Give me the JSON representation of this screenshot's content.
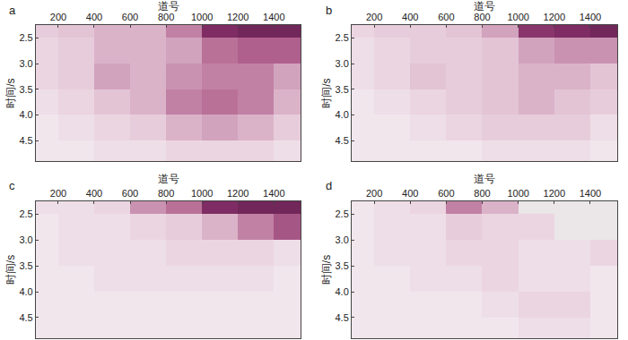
{
  "chart_data": [
    {
      "type": "heatmap",
      "title": "a",
      "xlabel": "道号",
      "ylabel": "时间/s",
      "x": [
        100,
        300,
        500,
        700,
        900,
        1100,
        1300,
        1500
      ],
      "y": [
        2.25,
        2.75,
        3.25,
        3.75,
        4.25,
        4.75
      ],
      "cells": [
        [
          0.2,
          0.25,
          0.3,
          0.3,
          0.45,
          0.8,
          0.85,
          0.85
        ],
        [
          0.15,
          0.2,
          0.3,
          0.3,
          0.35,
          0.5,
          0.55,
          0.55
        ],
        [
          0.15,
          0.2,
          0.35,
          0.3,
          0.4,
          0.45,
          0.45,
          0.35
        ],
        [
          0.1,
          0.15,
          0.25,
          0.3,
          0.45,
          0.5,
          0.45,
          0.3
        ],
        [
          0.05,
          0.1,
          0.15,
          0.2,
          0.3,
          0.35,
          0.3,
          0.2
        ],
        [
          0.05,
          0.05,
          0.1,
          0.1,
          0.15,
          0.15,
          0.15,
          0.1
        ]
      ],
      "zlim": [
        0,
        1
      ],
      "xlim": [
        75,
        1550
      ],
      "ylim": [
        2.25,
        4.9
      ],
      "xticks": [
        200,
        400,
        600,
        800,
        1000,
        1200,
        1400
      ],
      "yticks": [
        2.5,
        {
          "value": 3,
          "label": "3.0"
        },
        3.5,
        {
          "value": 4,
          "label": "4.0"
        },
        4.5
      ]
    },
    {
      "type": "heatmap",
      "title": "b",
      "xlabel": "道号",
      "ylabel": "时间/s",
      "x": [
        100,
        300,
        500,
        700,
        900,
        1100,
        1300,
        1500
      ],
      "y": [
        2.25,
        2.75,
        3.25,
        3.75,
        4.25,
        4.75
      ],
      "cells": [
        [
          0.15,
          0.2,
          0.2,
          0.25,
          0.35,
          0.75,
          0.8,
          0.85
        ],
        [
          0.1,
          0.15,
          0.2,
          0.2,
          0.25,
          0.35,
          0.4,
          0.4
        ],
        [
          0.1,
          0.15,
          0.25,
          0.2,
          0.25,
          0.3,
          0.3,
          0.25
        ],
        [
          0.05,
          0.1,
          0.15,
          0.2,
          0.25,
          0.3,
          0.25,
          0.2
        ],
        [
          0.05,
          0.05,
          0.1,
          0.15,
          0.2,
          0.2,
          0.2,
          0.1
        ],
        [
          0.05,
          0.05,
          0.05,
          0.05,
          0.1,
          0.1,
          0.1,
          0.05
        ]
      ],
      "zlim": [
        0,
        1
      ],
      "xlim": [
        75,
        1550
      ],
      "ylim": [
        2.25,
        4.9
      ],
      "xticks": [
        200,
        400,
        600,
        800,
        1000,
        1200,
        1400
      ],
      "yticks": [
        2.5,
        {
          "value": 3,
          "label": "3.0"
        },
        3.5,
        {
          "value": 4,
          "label": "4.0"
        },
        4.5
      ]
    },
    {
      "type": "heatmap",
      "title": "c",
      "xlabel": "道号",
      "ylabel": "时间/s",
      "x": [
        100,
        300,
        500,
        700,
        900,
        1100,
        1300,
        1500
      ],
      "y": [
        2.25,
        2.75,
        3.25,
        3.75,
        4.25,
        4.75
      ],
      "cells": [
        [
          0.1,
          0.1,
          0.15,
          0.4,
          0.5,
          0.8,
          0.85,
          0.85
        ],
        [
          0.05,
          0.1,
          0.1,
          0.15,
          0.2,
          0.3,
          0.45,
          0.6
        ],
        [
          0.05,
          0.1,
          0.1,
          0.1,
          0.15,
          0.15,
          0.15,
          0.1
        ],
        [
          0.05,
          0.05,
          0.1,
          0.1,
          0.1,
          0.1,
          0.1,
          0.05
        ],
        [
          0.05,
          0.05,
          0.05,
          0.05,
          0.05,
          0.05,
          0.05,
          0.05
        ],
        [
          0.05,
          0.05,
          0.05,
          0.05,
          0.05,
          0.05,
          0.05,
          0.05
        ]
      ],
      "zlim": [
        0,
        1
      ],
      "xlim": [
        75,
        1550
      ],
      "ylim": [
        2.25,
        4.9
      ],
      "xticks": [
        200,
        400,
        600,
        800,
        1000,
        1200,
        1400
      ],
      "yticks": [
        2.5,
        {
          "value": 3,
          "label": "3.0"
        },
        3.5,
        {
          "value": 4,
          "label": "4.0"
        },
        4.5
      ]
    },
    {
      "type": "heatmap",
      "title": "d",
      "xlabel": "道号",
      "ylabel": "时间/s",
      "x": [
        100,
        300,
        500,
        700,
        900,
        1100,
        1300,
        1500
      ],
      "y": [
        2.25,
        2.75,
        3.25,
        3.75,
        4.25,
        4.75
      ],
      "cells": [
        [
          0.05,
          0.1,
          0.15,
          0.45,
          0.3,
          null,
          null,
          null
        ],
        [
          0.05,
          0.1,
          0.1,
          0.2,
          0.15,
          0.15,
          null,
          null
        ],
        [
          0.05,
          0.1,
          0.1,
          0.15,
          0.15,
          0.1,
          0.1,
          0.15
        ],
        [
          0.05,
          0.05,
          0.1,
          0.1,
          0.15,
          0.1,
          0.1,
          0.05
        ],
        [
          0.05,
          0.05,
          0.05,
          0.05,
          0.1,
          0.15,
          0.15,
          0.05
        ],
        [
          0.05,
          0.05,
          0.05,
          0.05,
          0.05,
          0.1,
          0.1,
          0.05
        ]
      ],
      "zlim": [
        0,
        1
      ],
      "xlim": [
        75,
        1550
      ],
      "ylim": [
        2.25,
        4.9
      ],
      "xticks": [
        200,
        400,
        600,
        800,
        1000,
        1200,
        1400
      ],
      "yticks": [
        2.5,
        {
          "value": 3,
          "label": "3.0"
        },
        3.5,
        {
          "value": 4,
          "label": "4.0"
        },
        4.5
      ]
    }
  ]
}
